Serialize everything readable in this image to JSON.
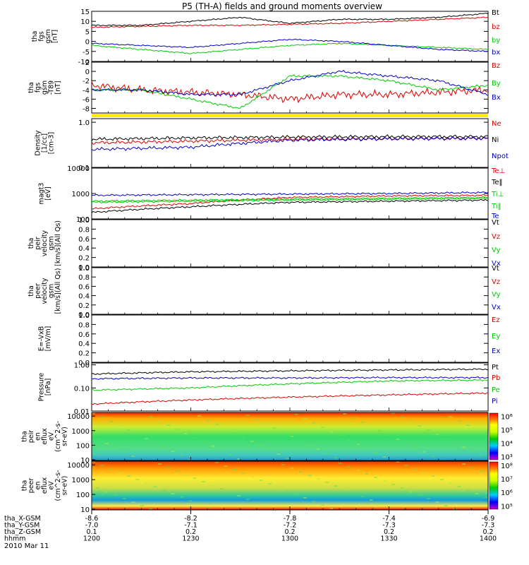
{
  "title": "P5 (TH-A) fields and ground moments overview",
  "date_label": "2010 Mar 11",
  "colors": {
    "black": "#000000",
    "red": "#dd0000",
    "green": "#00cc00",
    "blue": "#0000cc",
    "yellow": "#ffee00"
  },
  "chart_data": [
    {
      "type": "line",
      "id": "fgs_gsm",
      "ylabel": [
        "tha",
        "fgs",
        "gsm",
        "[nT]"
      ],
      "ylim": [
        -10,
        15
      ],
      "ticks": [
        "15",
        "10",
        "5",
        "0",
        "-5",
        "-10"
      ],
      "tick_values": [
        15,
        10,
        5,
        0,
        -5,
        -10
      ],
      "series": [
        {
          "name": "Bt",
          "color": "black",
          "x": [
            1200,
            1215,
            1230,
            1245,
            1300,
            1315,
            1330,
            1345,
            1400
          ],
          "values": [
            8,
            8,
            10,
            12,
            9,
            11,
            11,
            12,
            14
          ]
        },
        {
          "name": "bz",
          "color": "red",
          "x": [
            1200,
            1215,
            1230,
            1245,
            1300,
            1315,
            1330,
            1345,
            1400
          ],
          "values": [
            7,
            7.5,
            8,
            8,
            8.5,
            9,
            10,
            11,
            12
          ]
        },
        {
          "name": "by",
          "color": "green",
          "x": [
            1200,
            1215,
            1230,
            1245,
            1300,
            1315,
            1330,
            1345,
            1400
          ],
          "values": [
            -2,
            -4,
            -6,
            -4,
            -2,
            -1,
            -2,
            -3,
            -4
          ]
        },
        {
          "name": "bx",
          "color": "blue",
          "x": [
            1200,
            1215,
            1230,
            1245,
            1300,
            1315,
            1330,
            1345,
            1400
          ],
          "values": [
            -1,
            -2,
            -3,
            -1,
            1,
            0,
            -2,
            -4,
            -5
          ]
        }
      ]
    },
    {
      "type": "line",
      "id": "fgs_dsl",
      "ylabel": [
        "tha",
        "fgs",
        "gsm",
        "-T89",
        "[nT]"
      ],
      "ylim": [
        -9,
        2
      ],
      "ticks": [
        "2",
        "0",
        "-2",
        "-4",
        "-6",
        "-8"
      ],
      "tick_values": [
        2,
        0,
        -2,
        -4,
        -6,
        -8
      ],
      "series": [
        {
          "name": "Bz",
          "color": "red",
          "x": [
            1200,
            1215,
            1230,
            1245,
            1300,
            1315,
            1330,
            1345,
            1400
          ],
          "values": [
            -3,
            -4,
            -4.5,
            -5,
            -6,
            -5,
            -5,
            -4.5,
            -4
          ]
        },
        {
          "name": "By",
          "color": "green",
          "x": [
            1200,
            1215,
            1230,
            1245,
            1300,
            1315,
            1330,
            1345,
            1400
          ],
          "values": [
            -4,
            -4,
            -6,
            -8,
            -1,
            -1,
            -2,
            -4,
            -3
          ]
        },
        {
          "name": "Bx",
          "color": "blue",
          "x": [
            1200,
            1215,
            1230,
            1245,
            1300,
            1315,
            1330,
            1345,
            1400
          ],
          "values": [
            -4,
            -4,
            -5,
            -5,
            -2,
            0,
            -1,
            -2,
            -5
          ]
        }
      ]
    },
    {
      "type": "line",
      "id": "density",
      "log": true,
      "ylabel": [
        "Density",
        "[1/cc]",
        "[cm-3]"
      ],
      "ylim": [
        0.1,
        1.2
      ],
      "ticks": [
        "1.0",
        "0.1"
      ],
      "tick_values": [
        1.0,
        0.1
      ],
      "series": [
        {
          "name": "Ne",
          "color": "red",
          "x": [
            1200,
            1230,
            1300,
            1330,
            1400
          ],
          "values": [
            0.35,
            0.38,
            0.42,
            0.43,
            0.44
          ]
        },
        {
          "name": "Ni",
          "color": "black",
          "x": [
            1200,
            1230,
            1300,
            1330,
            1400
          ],
          "values": [
            0.42,
            0.45,
            0.47,
            0.48,
            0.48
          ]
        },
        {
          "name": "Npot",
          "color": "blue",
          "x": [
            1200,
            1230,
            1300,
            1330,
            1400
          ],
          "values": [
            0.25,
            0.28,
            0.4,
            0.43,
            0.44
          ]
        }
      ]
    },
    {
      "type": "line",
      "id": "temperature",
      "log": true,
      "ylabel": [
        "magt3",
        "[eV]"
      ],
      "ylim": [
        100,
        10000
      ],
      "ticks": [
        "10000",
        "1000",
        "100"
      ],
      "tick_values": [
        10000,
        1000,
        100
      ],
      "series": [
        {
          "name": "Te⊥",
          "color": "red",
          "x": [
            1200,
            1230,
            1300,
            1330,
            1400
          ],
          "values": [
            250,
            400,
            700,
            800,
            850
          ]
        },
        {
          "name": "Te‖",
          "color": "black",
          "x": [
            1200,
            1230,
            1300,
            1330,
            1400
          ],
          "values": [
            180,
            300,
            450,
            500,
            550
          ]
        },
        {
          "name": "Ti⊥",
          "color": "green",
          "x": [
            1200,
            1230,
            1300,
            1330,
            1400
          ],
          "values": [
            500,
            550,
            600,
            650,
            700
          ]
        },
        {
          "name": "Ti‖",
          "color": "green",
          "x": [
            1200,
            1230,
            1300,
            1330,
            1400
          ],
          "values": [
            450,
            500,
            550,
            600,
            650
          ]
        },
        {
          "name": "Te",
          "color": "blue",
          "x": [
            1200,
            1230,
            1300,
            1330,
            1400
          ],
          "values": [
            850,
            900,
            950,
            1000,
            1100
          ]
        }
      ]
    },
    {
      "type": "line",
      "id": "peir_velocity",
      "ylabel": [
        "tha",
        "peir",
        "velocity",
        "gsm",
        "[km/s](All Qs)"
      ],
      "ylim": [
        0,
        1
      ],
      "ticks": [
        "1.0",
        "0.8",
        "0.6",
        "0.4",
        "0.2",
        "0.0"
      ],
      "tick_values": [
        1.0,
        0.8,
        0.6,
        0.4,
        0.2,
        0.0
      ],
      "series": [
        {
          "name": "Vt",
          "color": "black",
          "values": []
        },
        {
          "name": "Vz",
          "color": "red",
          "values": []
        },
        {
          "name": "Vy",
          "color": "green",
          "values": []
        },
        {
          "name": "Vx",
          "color": "blue",
          "values": []
        }
      ]
    },
    {
      "type": "line",
      "id": "peer_velocity",
      "ylabel": [
        "tha",
        "peer",
        "velocity",
        "gsm",
        "[km/s](All Qs)"
      ],
      "ylim": [
        0,
        1
      ],
      "ticks": [
        "1.0",
        "0.8",
        "0.6",
        "0.4",
        "0.2",
        "0.0"
      ],
      "tick_values": [
        1.0,
        0.8,
        0.6,
        0.4,
        0.2,
        0.0
      ],
      "series": [
        {
          "name": "Vt",
          "color": "black",
          "values": []
        },
        {
          "name": "Vz",
          "color": "red",
          "values": []
        },
        {
          "name": "Vy",
          "color": "green",
          "values": []
        },
        {
          "name": "Vx",
          "color": "blue",
          "values": []
        }
      ]
    },
    {
      "type": "line",
      "id": "efield",
      "ylabel": [
        "E=-VxB",
        "[mV/m]"
      ],
      "ylim": [
        0,
        1
      ],
      "ticks": [
        "1.0",
        "0.8",
        "0.6",
        "0.4",
        "0.2",
        "0.0"
      ],
      "tick_values": [
        1.0,
        0.8,
        0.6,
        0.4,
        0.2,
        0.0
      ],
      "series": [
        {
          "name": "Ez",
          "color": "red",
          "values": []
        },
        {
          "name": "Ey",
          "color": "green",
          "values": []
        },
        {
          "name": "Ex",
          "color": "blue",
          "values": []
        }
      ]
    },
    {
      "type": "line",
      "id": "pressure",
      "log": true,
      "ylabel": [
        "Pressure",
        "[nPa]"
      ],
      "ylim": [
        0.01,
        1.2
      ],
      "ticks": [
        "1.00",
        "0.10",
        "0.01"
      ],
      "tick_values": [
        1.0,
        0.1,
        0.01
      ],
      "series": [
        {
          "name": "Pt",
          "color": "black",
          "x": [
            1200,
            1230,
            1300,
            1330,
            1400
          ],
          "values": [
            0.4,
            0.5,
            0.55,
            0.6,
            0.65
          ]
        },
        {
          "name": "Pb",
          "color": "red",
          "x": [
            1200,
            1230,
            1300,
            1330,
            1400
          ],
          "values": [
            0.02,
            0.03,
            0.04,
            0.05,
            0.06
          ]
        },
        {
          "name": "Pe",
          "color": "green",
          "x": [
            1200,
            1230,
            1300,
            1330,
            1400
          ],
          "values": [
            0.08,
            0.1,
            0.15,
            0.2,
            0.22
          ]
        },
        {
          "name": "Pi",
          "color": "blue",
          "x": [
            1200,
            1230,
            1300,
            1330,
            1400
          ],
          "values": [
            0.25,
            0.27,
            0.27,
            0.28,
            0.28
          ]
        }
      ]
    },
    {
      "type": "heatmap",
      "id": "peir_eflux",
      "ylabel": [
        "tha",
        "peir",
        "en",
        "eflux",
        "eV",
        "(cm^2-s-",
        "sr-eV)"
      ],
      "ticks": [
        "10000",
        "1000",
        "100",
        "10"
      ],
      "tick_values": [
        10000,
        1000,
        100,
        10
      ],
      "colorbar_ticks": [
        "10⁶",
        "10⁵",
        "10⁴",
        "10³"
      ],
      "colorbar_values": [
        6,
        5,
        4,
        3
      ]
    },
    {
      "type": "heatmap",
      "id": "peer_eflux",
      "ylabel": [
        "tha",
        "peer",
        "en",
        "eflux",
        "eV",
        "(cm^2-s-",
        "sr-eV)"
      ],
      "ticks": [
        "10000",
        "1000",
        "100",
        "10"
      ],
      "tick_values": [
        10000,
        1000,
        100,
        10
      ],
      "colorbar_ticks": [
        "10⁸",
        "10⁷",
        "10⁶",
        "10⁵"
      ],
      "colorbar_values": [
        8,
        7,
        6,
        5
      ]
    }
  ],
  "x_axis": {
    "row_labels": [
      "tha_X-GSM",
      "tha_Y-GSM",
      "tha_Z-GSM",
      "hhmm"
    ],
    "columns": [
      {
        "values": [
          "-8.6",
          "-7.0",
          "0.1",
          "1200"
        ]
      },
      {
        "values": [
          "-8.2",
          "-7.1",
          "0.2",
          "1230"
        ]
      },
      {
        "values": [
          "-7.8",
          "-7.2",
          "0.2",
          "1300"
        ]
      },
      {
        "values": [
          "-7.4",
          "-7.3",
          "0.2",
          "1330"
        ]
      },
      {
        "values": [
          "-6.9",
          "-7.3",
          "0.2",
          "1400"
        ]
      }
    ]
  }
}
